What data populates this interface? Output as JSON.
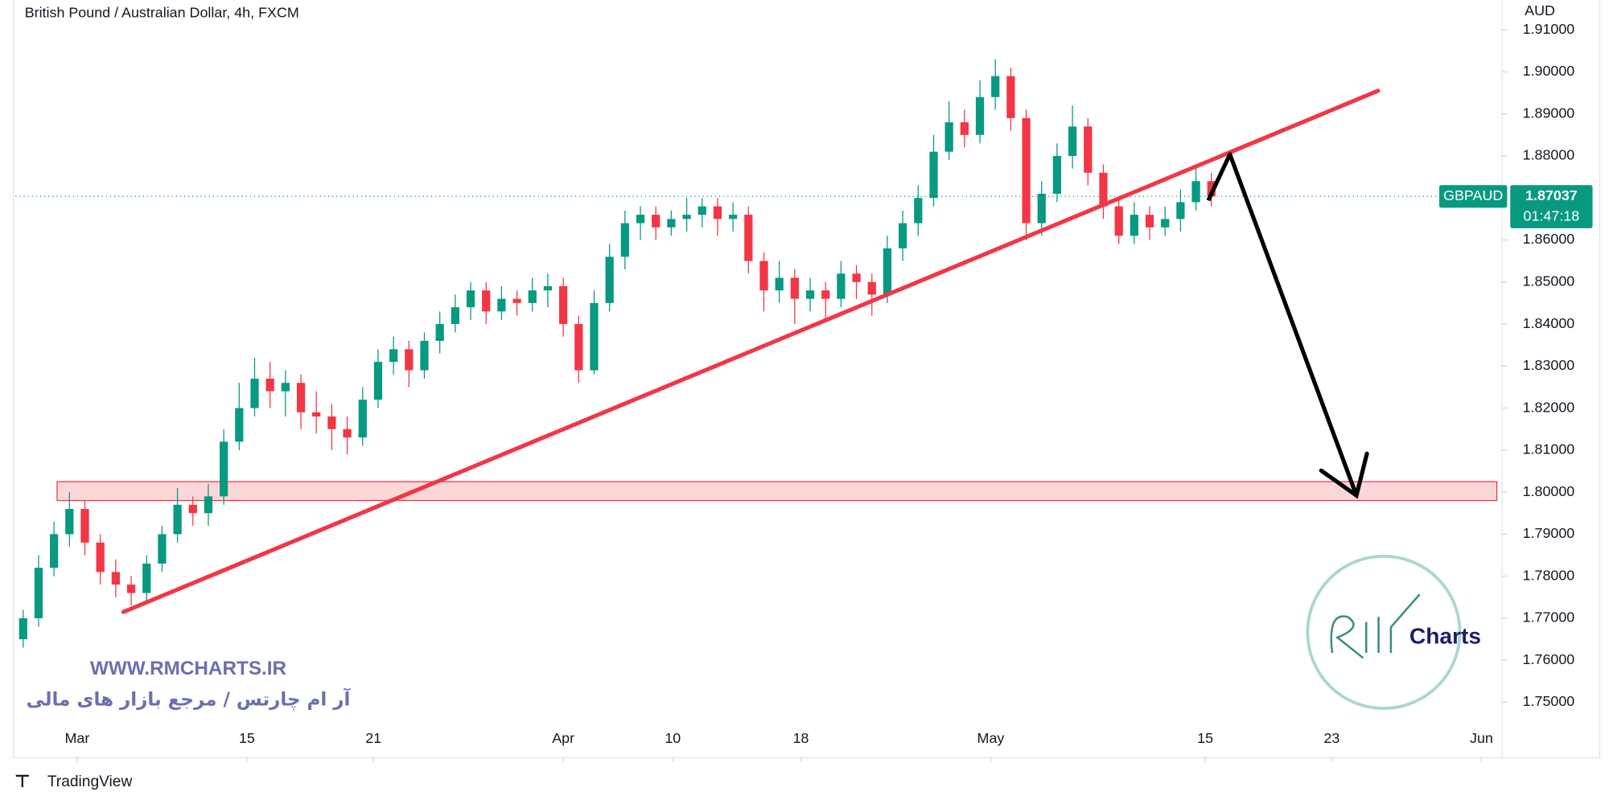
{
  "chart_data": {
    "type": "candlestick",
    "title": "British Pound / Australian Dollar, 4h, FXCM",
    "y_axis_label": "AUD",
    "x": [
      0.5,
      1.5,
      2.5,
      3.5,
      4.5,
      5.5,
      6.5,
      7.5,
      8.5,
      9.5,
      10.5,
      11.5,
      12.5,
      13.5,
      14.5,
      15.5,
      16.5,
      17.5,
      18.5,
      19.5,
      20.5,
      21.5,
      22.5,
      23.5,
      24.5,
      25.5,
      26.5,
      27.5,
      28.5,
      29.5,
      30.5,
      31.5,
      32.5,
      33.5,
      34.5,
      35.5,
      36.5,
      37.5,
      38.5,
      39.5,
      40.5,
      41.5,
      42.5,
      43.5,
      44.5,
      45.5,
      46.5,
      47.5,
      48.5,
      49.5,
      50.5,
      51.5,
      52.5,
      53.5,
      54.5,
      55.5,
      56.5,
      57.5,
      58.5,
      59.5,
      60.5,
      61.5,
      62.5,
      63.5,
      64.5,
      65.5,
      66.5,
      67.5,
      68.5,
      69.5,
      70.5,
      71.5,
      72.5,
      73.5,
      74.5,
      75.5,
      76.5,
      77.5
    ],
    "open": [
      1.765,
      1.77,
      1.782,
      1.79,
      1.796,
      1.788,
      1.781,
      1.778,
      1.776,
      1.783,
      1.79,
      1.797,
      1.795,
      1.799,
      1.812,
      1.82,
      1.827,
      1.824,
      1.826,
      1.819,
      1.818,
      1.815,
      1.813,
      1.822,
      1.831,
      1.834,
      1.829,
      1.836,
      1.84,
      1.844,
      1.848,
      1.843,
      1.846,
      1.845,
      1.848,
      1.849,
      1.84,
      1.829,
      1.845,
      1.856,
      1.864,
      1.866,
      1.863,
      1.865,
      1.866,
      1.868,
      1.865,
      1.866,
      1.855,
      1.848,
      1.851,
      1.846,
      1.848,
      1.846,
      1.852,
      1.85,
      1.847,
      1.858,
      1.864,
      1.87,
      1.881,
      1.888,
      1.885,
      1.894,
      1.899,
      1.889,
      1.864,
      1.871,
      1.88,
      1.887,
      1.876,
      1.868,
      1.861,
      1.866,
      1.863,
      1.865,
      1.869,
      1.874
    ],
    "high": [
      1.772,
      1.785,
      1.793,
      1.8,
      1.798,
      1.79,
      1.784,
      1.78,
      1.785,
      1.792,
      1.801,
      1.799,
      1.802,
      1.815,
      1.826,
      1.832,
      1.831,
      1.829,
      1.828,
      1.824,
      1.821,
      1.818,
      1.825,
      1.834,
      1.837,
      1.836,
      1.838,
      1.843,
      1.847,
      1.85,
      1.85,
      1.849,
      1.848,
      1.851,
      1.852,
      1.851,
      1.842,
      1.848,
      1.859,
      1.867,
      1.868,
      1.868,
      1.867,
      1.87,
      1.87,
      1.87,
      1.869,
      1.868,
      1.857,
      1.855,
      1.853,
      1.851,
      1.85,
      1.855,
      1.854,
      1.852,
      1.861,
      1.867,
      1.873,
      1.885,
      1.893,
      1.891,
      1.898,
      1.903,
      1.901,
      1.891,
      1.874,
      1.883,
      1.892,
      1.889,
      1.878,
      1.87,
      1.869,
      1.868,
      1.868,
      1.872,
      1.877,
      1.876
    ],
    "low": [
      1.763,
      1.768,
      1.78,
      1.787,
      1.785,
      1.778,
      1.775,
      1.773,
      1.774,
      1.781,
      1.788,
      1.792,
      1.792,
      1.797,
      1.81,
      1.818,
      1.82,
      1.818,
      1.815,
      1.814,
      1.81,
      1.809,
      1.811,
      1.82,
      1.828,
      1.825,
      1.827,
      1.833,
      1.838,
      1.841,
      1.84,
      1.841,
      1.842,
      1.843,
      1.844,
      1.837,
      1.826,
      1.828,
      1.843,
      1.853,
      1.86,
      1.86,
      1.861,
      1.862,
      1.863,
      1.861,
      1.862,
      1.852,
      1.843,
      1.845,
      1.84,
      1.843,
      1.841,
      1.844,
      1.846,
      1.842,
      1.845,
      1.855,
      1.861,
      1.868,
      1.879,
      1.882,
      1.883,
      1.891,
      1.886,
      1.86,
      1.861,
      1.869,
      1.877,
      1.873,
      1.865,
      1.859,
      1.859,
      1.86,
      1.861,
      1.862,
      1.867,
      1.868
    ],
    "close": [
      1.77,
      1.782,
      1.79,
      1.796,
      1.788,
      1.781,
      1.778,
      1.776,
      1.783,
      1.79,
      1.797,
      1.795,
      1.799,
      1.812,
      1.82,
      1.827,
      1.824,
      1.826,
      1.819,
      1.818,
      1.815,
      1.813,
      1.822,
      1.831,
      1.834,
      1.829,
      1.836,
      1.84,
      1.844,
      1.848,
      1.843,
      1.846,
      1.845,
      1.848,
      1.849,
      1.84,
      1.829,
      1.845,
      1.856,
      1.864,
      1.866,
      1.863,
      1.865,
      1.866,
      1.868,
      1.865,
      1.866,
      1.855,
      1.848,
      1.851,
      1.846,
      1.848,
      1.846,
      1.852,
      1.85,
      1.847,
      1.858,
      1.864,
      1.87,
      1.881,
      1.888,
      1.885,
      1.894,
      1.899,
      1.889,
      1.864,
      1.871,
      1.88,
      1.887,
      1.876,
      1.868,
      1.861,
      1.866,
      1.863,
      1.865,
      1.869,
      1.874,
      1.87037
    ],
    "up_color": "#089981",
    "down_color": "#f23645",
    "xlim": [
      0,
      96
    ],
    "ylim": [
      1.7439,
      1.9171
    ],
    "xticks": [
      {
        "value": 4,
        "label": "Mar"
      },
      15,
      {
        "value": 23.2,
        "label": "21"
      },
      {
        "value": 35.5,
        "label": "Apr"
      },
      {
        "value": 42.6,
        "label": "10"
      },
      {
        "value": 50.9,
        "label": "18"
      },
      {
        "value": 63.2,
        "label": "May"
      },
      {
        "value": 77.1,
        "label": "15"
      },
      {
        "value": 85.3,
        "label": "23"
      },
      {
        "value": 95,
        "label": "Jun"
      }
    ],
    "yticks": [
      {
        "value": 1.75,
        "label": "1.75000"
      },
      {
        "value": 1.76,
        "label": "1.76000"
      },
      {
        "value": 1.77,
        "label": "1.77000"
      },
      {
        "value": 1.78,
        "label": "1.78000"
      },
      {
        "value": 1.79,
        "label": "1.79000"
      },
      {
        "value": 1.8,
        "label": "1.80000"
      },
      {
        "value": 1.81,
        "label": "1.81000"
      },
      {
        "value": 1.82,
        "label": "1.82000"
      },
      {
        "value": 1.83,
        "label": "1.83000"
      },
      {
        "value": 1.84,
        "label": "1.84000"
      },
      {
        "value": 1.85,
        "label": "1.85000"
      },
      {
        "value": 1.86,
        "label": "1.86000"
      },
      {
        "value": 1.87,
        "label": "1.87000"
      },
      {
        "value": 1.88,
        "label": "1.88000"
      },
      {
        "value": 1.89,
        "label": "1.89000"
      },
      {
        "value": 1.9,
        "label": "1.90000"
      },
      {
        "value": 1.91,
        "label": "1.91000"
      }
    ],
    "last_price": {
      "symbol": "GBPAUD",
      "value": 1.87037,
      "countdown": "01:47:18",
      "color": "#089981"
    },
    "trendline": {
      "x": [
        7,
        88.3
      ],
      "y": [
        1.7715,
        1.8955
      ],
      "color": "#f23645"
    },
    "zone": {
      "x": [
        2.7,
        96
      ],
      "y": [
        1.798,
        1.8025
      ],
      "color": "#f23645"
    },
    "arrow": {
      "x": [
        77.3,
        78.7,
        86.9
      ],
      "y": [
        1.8694,
        1.8804,
        1.7992
      ],
      "color": "#000000"
    }
  },
  "watermark": {
    "url": "WWW.RMCHARTS.IR",
    "tagline": "آر ام چارتس / مرجع بازار های مالی",
    "logo": "Charts"
  },
  "footer": "TradingView"
}
